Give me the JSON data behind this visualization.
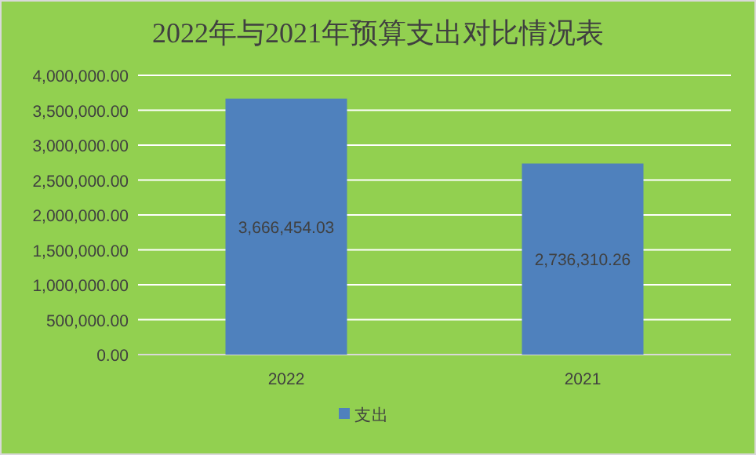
{
  "chart_data": {
    "type": "bar",
    "title": "2022年与2021年预算支出对比情况表",
    "categories": [
      "2022",
      "2021"
    ],
    "series": [
      {
        "name": "支出",
        "color": "#4f81bd",
        "values": [
          3666454.03,
          2736310.26
        ],
        "value_labels": [
          "3,666,454.03",
          "2,736,310.26"
        ]
      }
    ],
    "ylim": [
      0,
      4000000
    ],
    "yticks": [
      {
        "value": 0,
        "label": "0.00"
      },
      {
        "value": 500000,
        "label": "500,000.00"
      },
      {
        "value": 1000000,
        "label": "1,000,000.00"
      },
      {
        "value": 1500000,
        "label": "1,500,000.00"
      },
      {
        "value": 2000000,
        "label": "2,000,000.00"
      },
      {
        "value": 2500000,
        "label": "2,500,000.00"
      },
      {
        "value": 3000000,
        "label": "3,000,000.00"
      },
      {
        "value": 3500000,
        "label": "3,500,000.00"
      },
      {
        "value": 4000000,
        "label": "4,000,000.00"
      }
    ],
    "grid": "y",
    "legend": "bottom"
  }
}
